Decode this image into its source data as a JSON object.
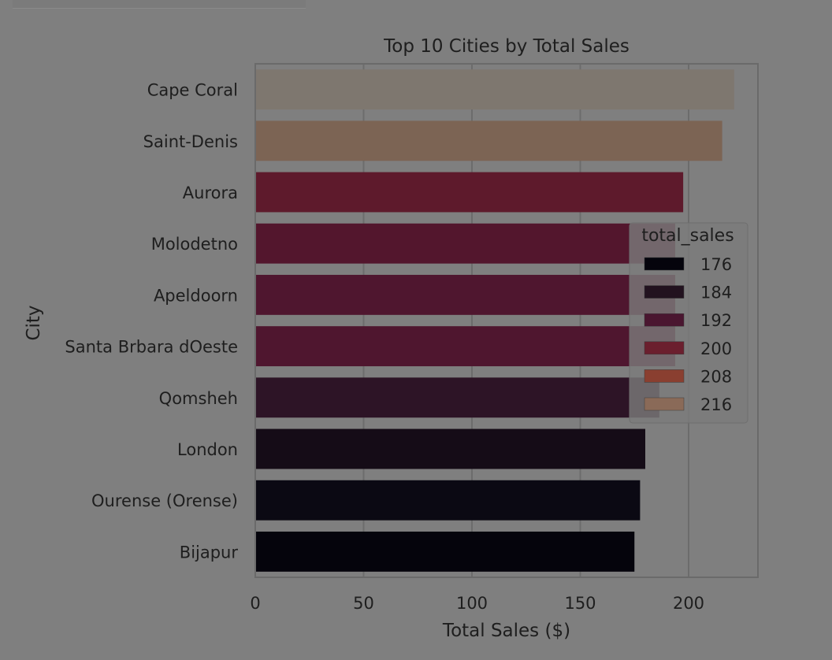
{
  "chart_data": {
    "type": "bar",
    "orientation": "horizontal",
    "title": "Top 10 Cities by Total Sales",
    "xlabel": "Total Sales ($)",
    "ylabel": "City",
    "xlim": [
      0,
      232
    ],
    "xticks": [
      0,
      50,
      100,
      150,
      200
    ],
    "grid": true,
    "categories": [
      "Cape Coral",
      "Saint-Denis",
      "Aurora",
      "Molodetno",
      "Apeldoorn",
      "Santa Brbara dOeste",
      "Qomsheh",
      "London",
      "Ourense (Orense)",
      "Bijapur"
    ],
    "values": [
      221.0,
      215.5,
      197.5,
      193.8,
      193.8,
      193.8,
      186.5,
      180.0,
      177.6,
      175.0
    ],
    "bar_colors": [
      "#7e776f",
      "#7c6454",
      "#5e1a2c",
      "#53162d",
      "#4f162f",
      "#4f162f",
      "#2d1426",
      "#150c17",
      "#0b0913",
      "#05040c"
    ],
    "legend": {
      "title": "total_sales",
      "position": "right",
      "entries": [
        {
          "label": "176",
          "color": "#05040c"
        },
        {
          "label": "184",
          "color": "#22121f"
        },
        {
          "label": "192",
          "color": "#4a1630"
        },
        {
          "label": "200",
          "color": "#6b1f2e"
        },
        {
          "label": "208",
          "color": "#8a3f30"
        },
        {
          "label": "216",
          "color": "#8a6a58"
        }
      ]
    }
  }
}
